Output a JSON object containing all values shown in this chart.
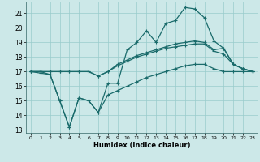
{
  "title": "",
  "xlabel": "Humidex (Indice chaleur)",
  "xlim": [
    -0.5,
    23.5
  ],
  "ylim": [
    12.8,
    21.8
  ],
  "yticks": [
    13,
    14,
    15,
    16,
    17,
    18,
    19,
    20,
    21
  ],
  "xticks": [
    0,
    1,
    2,
    3,
    4,
    5,
    6,
    7,
    8,
    9,
    10,
    11,
    12,
    13,
    14,
    15,
    16,
    17,
    18,
    19,
    20,
    21,
    22,
    23
  ],
  "bg_color": "#cce8e8",
  "grid_color": "#99cccc",
  "line_color": "#1a6b6b",
  "series": [
    [
      17.0,
      16.9,
      16.8,
      15.0,
      13.2,
      15.2,
      15.0,
      14.2,
      16.2,
      16.2,
      18.5,
      19.0,
      19.8,
      19.0,
      20.3,
      20.5,
      21.4,
      21.3,
      20.7,
      19.1,
      18.6,
      17.5,
      17.2,
      17.0
    ],
    [
      17.0,
      17.0,
      17.0,
      17.0,
      17.0,
      17.0,
      17.0,
      16.7,
      17.0,
      17.5,
      17.8,
      18.1,
      18.3,
      18.5,
      18.7,
      18.9,
      19.0,
      19.1,
      19.0,
      18.5,
      18.6,
      17.5,
      17.2,
      17.0
    ],
    [
      17.0,
      17.0,
      17.0,
      17.0,
      17.0,
      17.0,
      17.0,
      16.7,
      17.0,
      17.4,
      17.7,
      18.0,
      18.2,
      18.4,
      18.6,
      18.7,
      18.8,
      18.9,
      18.9,
      18.4,
      18.2,
      17.5,
      17.2,
      17.0
    ],
    [
      17.0,
      17.0,
      16.8,
      15.0,
      13.2,
      15.2,
      15.0,
      14.2,
      15.4,
      15.7,
      16.0,
      16.3,
      16.6,
      16.8,
      17.0,
      17.2,
      17.4,
      17.5,
      17.5,
      17.2,
      17.0,
      17.0,
      17.0,
      17.0
    ]
  ]
}
